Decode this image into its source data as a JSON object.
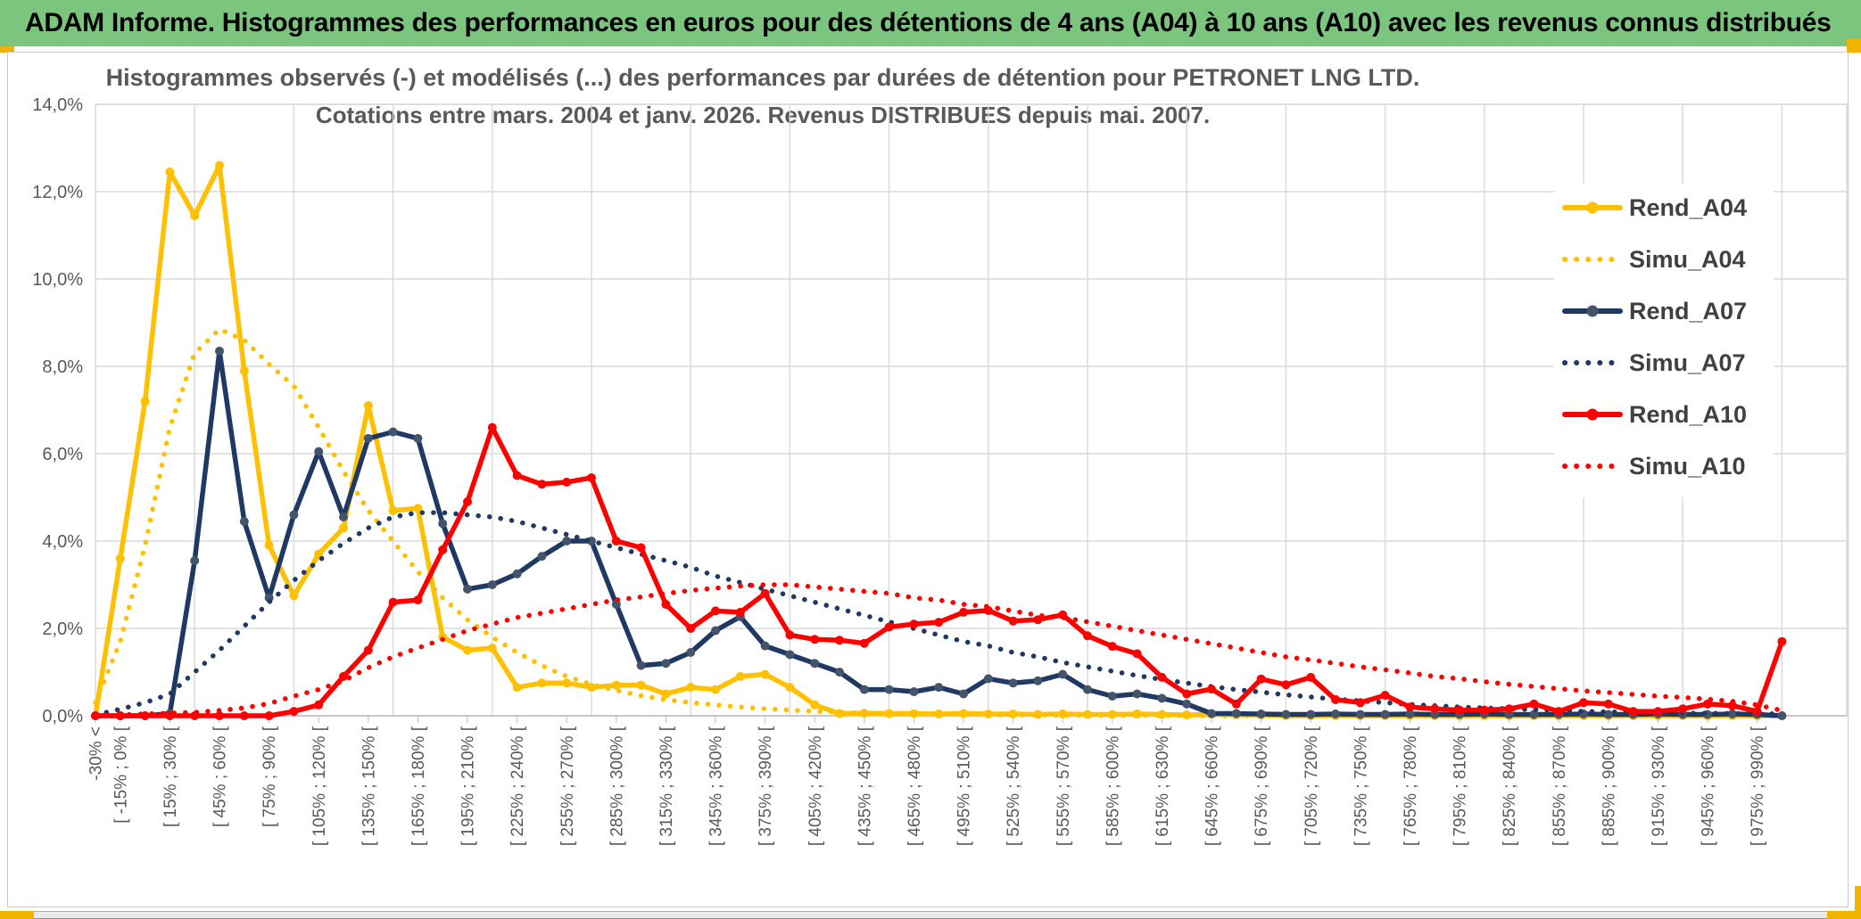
{
  "title_bar": {
    "text": "ADAM Informe. Histogrammes des performances en euros pour des détentions de 4 ans (A04) à 10 ans (A10) avec les revenus connus distribués"
  },
  "chart": {
    "title_line1": "Histogrammes observés (-) et modélisés (...) des performances par durées de détention pour PETRONET LNG LTD.",
    "title_line2": "Cotations entre mars. 2004 et janv. 2026. Revenus DISTRIBUES depuis mai. 2007."
  },
  "colors": {
    "title_bar_bg": "#7CC57E",
    "gold_accent": "#F0B400",
    "gold_series": "#FFC000",
    "navy_series": "#1F3864",
    "navy_marker": "#44546A",
    "red_series": "#FF0000",
    "grid": "#D9D9D9",
    "axis_line": "#BFBFBF",
    "axis_text": "#595959",
    "legend_text": "#404040"
  },
  "chart_data": {
    "type": "line",
    "title": "Histogrammes observés (-) et modélisés (...) des performances par durées de détention pour PETRONET LNG LTD. Cotations entre mars. 2004 et janv. 2026. Revenus DISTRIBUES depuis mai. 2007.",
    "n_bins": 69,
    "bin_width_pct": 15,
    "grid": true,
    "legend_position": "right-inside",
    "ylim": [
      0,
      14
    ],
    "y_tick_labels": [
      "0,0%",
      "2,0%",
      "4,0%",
      "6,0%",
      "8,0%",
      "10,0%",
      "12,0%",
      "14,0%"
    ],
    "x_tick_label_rule": "first label on bin 0, then every 2nd bin (bins 1,3,5,...,67); last bin unlabeled",
    "x_tick_labels": [
      "-30% <",
      "[ -15% ; 0% [",
      "[ 15% ; 30% [",
      "[ 45% ; 60% [",
      "[ 75% ; 90% [",
      "[ 105% ; 120% [",
      "[ 135% ; 150% [",
      "[ 165% ; 180% [",
      "[ 195% ; 210% [",
      "[ 225% ; 240% [",
      "[ 255% ; 270% [",
      "[ 285% ; 300% [",
      "[ 315% ; 330% [",
      "[ 345% ; 360% [",
      "[ 375% ; 390% [",
      "[ 405% ; 420% [",
      "[ 435% ; 450% [",
      "[ 465% ; 480% [",
      "[ 495% ; 510% [",
      "[ 525% ; 540% [",
      "[ 555% ; 570% [",
      "[ 585% ; 600% [",
      "[ 615% ; 630% [",
      "[ 645% ; 660% [",
      "[ 675% ; 690% [",
      "[ 705% ; 720% [",
      "[ 735% ; 750% [",
      "[ 765% ; 780% [",
      "[ 795% ; 810% [",
      "[ 825% ; 840% [",
      "[ 855% ; 870% [",
      "[ 885% ; 900% [",
      "[ 915% ; 930% [",
      "[ 945% ; 960% [",
      "[ 975% ; 990% ["
    ],
    "series": [
      {
        "name": "Rend_A04",
        "style": "solid",
        "color": "#FFC000",
        "marker_color": "#FFC000",
        "values": [
          0,
          3.6,
          7.2,
          12.45,
          11.45,
          12.6,
          7.9,
          3.9,
          2.75,
          3.7,
          4.3,
          7.1,
          4.7,
          4.75,
          1.8,
          1.5,
          1.55,
          0.65,
          0.75,
          0.75,
          0.65,
          0.7,
          0.7,
          0.5,
          0.65,
          0.6,
          0.9,
          0.95,
          0.65,
          0.25,
          0.05,
          0.06,
          0.05,
          0.05,
          0.04,
          0.05,
          0.04,
          0.04,
          0.03,
          0.04,
          0.03,
          0.03,
          0.04,
          0.03,
          0.02,
          0.03,
          0.02,
          0.02,
          0,
          0,
          0,
          0,
          0,
          0,
          0,
          0,
          0,
          0,
          0,
          0,
          0,
          0,
          0,
          0,
          0,
          0,
          0,
          0,
          0
        ]
      },
      {
        "name": "Simu_A04",
        "style": "dotted",
        "color": "#FFC000",
        "values": [
          0.3,
          1.7,
          3.9,
          6.6,
          8.3,
          8.85,
          8.6,
          8.05,
          7.55,
          6.6,
          5.6,
          4.7,
          4.0,
          3.3,
          2.7,
          2.2,
          1.8,
          1.45,
          1.15,
          0.9,
          0.72,
          0.58,
          0.46,
          0.37,
          0.3,
          0.25,
          0.2,
          0.16,
          0.13,
          0.1,
          0.08,
          0.06,
          0.05,
          0.04,
          0.03,
          0.03,
          0.02,
          0.02,
          0.02,
          0.01,
          0.01,
          0.01,
          0.01,
          0.01,
          0.01,
          0,
          0,
          0,
          0,
          0,
          0,
          0,
          0,
          0,
          0,
          0,
          0,
          0,
          0,
          0,
          0,
          0,
          0,
          0,
          0,
          0,
          0,
          0,
          0
        ]
      },
      {
        "name": "Rend_A07",
        "style": "solid",
        "color": "#1F3864",
        "marker_color": "#44546A",
        "values": [
          0,
          0,
          0,
          0.05,
          3.55,
          8.35,
          4.45,
          2.7,
          4.6,
          6.05,
          4.55,
          6.35,
          6.5,
          6.35,
          4.4,
          2.9,
          3.0,
          3.25,
          3.65,
          4.0,
          4.0,
          2.55,
          1.15,
          1.2,
          1.45,
          1.95,
          2.27,
          1.6,
          1.4,
          1.2,
          1.0,
          0.6,
          0.6,
          0.55,
          0.65,
          0.5,
          0.85,
          0.75,
          0.8,
          0.95,
          0.6,
          0.45,
          0.5,
          0.4,
          0.27,
          0.05,
          0.05,
          0.04,
          0.03,
          0.03,
          0.04,
          0.03,
          0.03,
          0.04,
          0.03,
          0.03,
          0.04,
          0.03,
          0.03,
          0.03,
          0.04,
          0.03,
          0.03,
          0.04,
          0.03,
          0.03,
          0.04,
          0.03,
          0
        ]
      },
      {
        "name": "Simu_A07",
        "style": "dotted",
        "color": "#1F3864",
        "values": [
          0.02,
          0.15,
          0.3,
          0.5,
          1.0,
          1.5,
          2.05,
          2.6,
          3.1,
          3.55,
          3.95,
          4.3,
          4.55,
          4.65,
          4.65,
          4.6,
          4.55,
          4.45,
          4.3,
          4.15,
          4.0,
          3.85,
          3.7,
          3.55,
          3.4,
          3.2,
          3.05,
          2.9,
          2.75,
          2.6,
          2.45,
          2.3,
          2.15,
          2.0,
          1.85,
          1.7,
          1.6,
          1.45,
          1.35,
          1.22,
          1.12,
          1.02,
          0.92,
          0.83,
          0.75,
          0.67,
          0.6,
          0.54,
          0.48,
          0.43,
          0.38,
          0.34,
          0.3,
          0.26,
          0.23,
          0.2,
          0.18,
          0.16,
          0.14,
          0.12,
          0.1,
          0.09,
          0.08,
          0.07,
          0.06,
          0.06,
          0.05,
          0.05,
          0.04
        ]
      },
      {
        "name": "Rend_A10",
        "style": "solid",
        "color": "#FF0000",
        "marker_color": "#FF0000",
        "values": [
          0,
          0,
          0,
          0,
          0,
          0,
          0,
          0,
          0.1,
          0.25,
          0.9,
          1.5,
          2.6,
          2.65,
          3.8,
          4.9,
          6.6,
          5.5,
          5.3,
          5.35,
          5.45,
          4.0,
          3.85,
          2.55,
          2.0,
          2.4,
          2.37,
          2.8,
          1.85,
          1.75,
          1.73,
          1.66,
          2.03,
          2.1,
          2.14,
          2.37,
          2.41,
          2.17,
          2.2,
          2.31,
          1.83,
          1.59,
          1.42,
          0.88,
          0.5,
          0.61,
          0.27,
          0.84,
          0.71,
          0.88,
          0.37,
          0.3,
          0.47,
          0.2,
          0.16,
          0.13,
          0.13,
          0.16,
          0.27,
          0.1,
          0.3,
          0.27,
          0.1,
          0.1,
          0.16,
          0.27,
          0.23,
          0.1,
          1.7
        ]
      },
      {
        "name": "Simu_A10",
        "style": "dotted",
        "color": "#FF0000",
        "values": [
          0,
          0.02,
          0.04,
          0.06,
          0.08,
          0.12,
          0.18,
          0.28,
          0.45,
          0.6,
          0.8,
          1.1,
          1.35,
          1.55,
          1.75,
          1.95,
          2.1,
          2.25,
          2.35,
          2.45,
          2.55,
          2.65,
          2.72,
          2.8,
          2.87,
          2.92,
          2.97,
          3.0,
          3.0,
          2.95,
          2.9,
          2.85,
          2.8,
          2.7,
          2.65,
          2.55,
          2.5,
          2.4,
          2.3,
          2.25,
          2.15,
          2.05,
          1.95,
          1.85,
          1.75,
          1.65,
          1.55,
          1.45,
          1.35,
          1.28,
          1.2,
          1.12,
          1.05,
          0.98,
          0.9,
          0.85,
          0.78,
          0.72,
          0.67,
          0.62,
          0.57,
          0.53,
          0.49,
          0.45,
          0.42,
          0.38,
          0.33,
          0.25,
          0.12
        ]
      }
    ]
  }
}
